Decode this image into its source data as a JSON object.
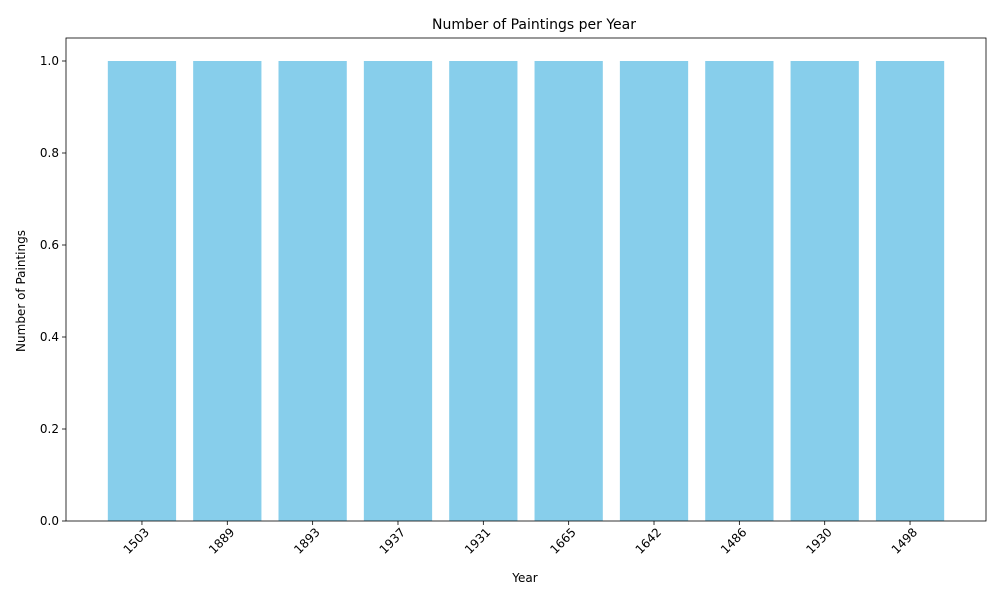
{
  "chart_data": {
    "type": "bar",
    "title": "Number of Paintings per Year",
    "xlabel": "Year",
    "ylabel": "Number of Paintings",
    "categories": [
      "1503",
      "1889",
      "1893",
      "1937",
      "1931",
      "1665",
      "1642",
      "1486",
      "1930",
      "1498"
    ],
    "values": [
      1,
      1,
      1,
      1,
      1,
      1,
      1,
      1,
      1,
      1
    ],
    "ylim": [
      0,
      1.05
    ],
    "yticks": [
      "0.0",
      "0.2",
      "0.4",
      "0.6",
      "0.8",
      "1.0"
    ],
    "x_tick_rotation_deg": 45,
    "bar_color": "#87CEEB",
    "grid": false,
    "legend": "none"
  }
}
